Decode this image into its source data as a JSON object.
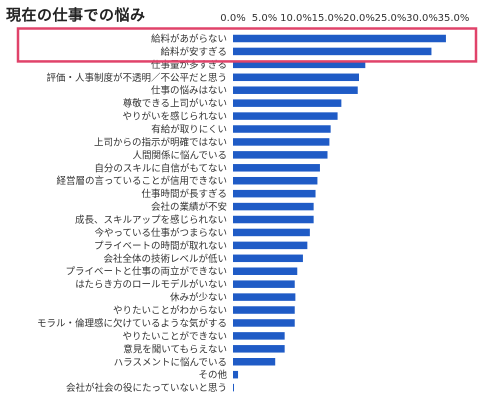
{
  "chart_data": {
    "type": "bar",
    "orientation": "horizontal",
    "title": "現在の仕事での悩み",
    "xlabel": "",
    "ylabel": "",
    "xlim": [
      0,
      37.5
    ],
    "x_ticks": [
      "0.0%",
      "5.0%",
      "10.0%",
      "15.0%",
      "20.0%",
      "25.0%",
      "30.0%",
      "35.0%"
    ],
    "grid": false,
    "legend": "none",
    "bar_color": "#1f5bc6",
    "highlight_color": "#e0436a",
    "highlighted_categories": [
      "給料があがらない",
      "給料が安すぎる"
    ],
    "categories": [
      "給料があがらない",
      "給料が安すぎる",
      "仕事量が多すぎる",
      "評価・人事制度が不透明／不公平だと思う",
      "仕事の悩みはない",
      "尊敬できる上司がいない",
      "やりがいを感じられない",
      "有給が取りにくい",
      "上司からの指示が明確ではない",
      "人間関係に悩んでいる",
      "自分のスキルに自信がもてない",
      "経営層の言っていることが信用できない",
      "仕事時間が長すぎる",
      "会社の業績が不安",
      "成長、スキルアップを感じられない",
      "今やっている仕事がつまらない",
      "プライベートの時間が取れない",
      "会社全体の技術レベルが低い",
      "プライベートと仕事の両立ができない",
      "はたらき方のロールモデルがいない",
      "休みが少ない",
      "やりたいことがわからない",
      "モラル・倫理感に欠けているような気がする",
      "やりたいことができない",
      "意見を聞いてもらえない",
      "ハラスメントに悩んでいる",
      "その他",
      "会社が社会の役にたっていないと思う"
    ],
    "values": [
      33.8,
      31.5,
      21.0,
      20.0,
      19.8,
      17.2,
      16.6,
      15.5,
      15.3,
      15.0,
      13.8,
      13.4,
      13.1,
      12.8,
      12.8,
      12.2,
      11.8,
      11.1,
      10.2,
      9.8,
      9.9,
      9.8,
      9.8,
      8.2,
      8.2,
      6.7,
      0.8,
      0.1
    ]
  }
}
